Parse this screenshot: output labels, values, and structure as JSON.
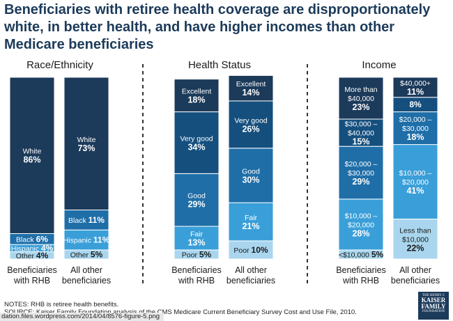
{
  "title_lines": [
    "Beneficiaries with retiree health coverage are disproportionately",
    "white, in better health, and have higher incomes than other",
    "Medicare beneficiaries"
  ],
  "notes": "NOTES: RHB is retiree health benefits.",
  "source": "SOURCE: Kaiser Family Foundation analysis of the CMS Medicare Current Beneficiary Survey Cost and Use File, 2010.",
  "url_bar": "dation.files.wordpress.com/2014/04/8576-figure-5.png",
  "logo": {
    "line1": "THE HENRY J.",
    "line2": "KAISER",
    "line3": "FAMILY",
    "line4": "FOUNDATION"
  },
  "chart_data": [
    {
      "type": "bar",
      "stacked": true,
      "title": "Race/Ethnicity",
      "categories": [
        [
          "Beneficiaries",
          "with RHB"
        ],
        [
          "All other",
          "beneficiaries"
        ]
      ],
      "series": [
        {
          "name": "Other",
          "values": [
            4,
            5
          ],
          "color": "#a9d6ee"
        },
        {
          "name": "Hispanic",
          "values": [
            4,
            11
          ],
          "color": "#3a9fd8"
        },
        {
          "name": "Black",
          "values": [
            6,
            11
          ],
          "color": "#1f6ea8"
        },
        {
          "name": "White",
          "values": [
            86,
            73
          ],
          "color": "#1c3a5a"
        }
      ],
      "labels": [
        [
          [
            "Other 4%"
          ],
          [
            "Hispanic 4%"
          ],
          [
            "Black 6%"
          ],
          [
            "White",
            "86%"
          ]
        ],
        [
          [
            "Other 5%"
          ],
          [
            "Hispanic 11%"
          ],
          [
            "Black 11%"
          ],
          [
            "White",
            "73%"
          ]
        ]
      ],
      "ylim": [
        0,
        100
      ]
    },
    {
      "type": "bar",
      "stacked": true,
      "title": "Health Status",
      "categories": [
        [
          "Beneficiaries",
          "with RHB"
        ],
        [
          "All other",
          "beneficiaries"
        ]
      ],
      "series": [
        {
          "name": "Poor",
          "values": [
            5,
            10
          ],
          "color": "#a9d6ee"
        },
        {
          "name": "Fair",
          "values": [
            13,
            21
          ],
          "color": "#3a9fd8"
        },
        {
          "name": "Good",
          "values": [
            29,
            30
          ],
          "color": "#1f6ea8"
        },
        {
          "name": "Very good",
          "values": [
            34,
            26
          ],
          "color": "#154f7e"
        },
        {
          "name": "Excellent",
          "values": [
            18,
            14
          ],
          "color": "#1c3a5a"
        }
      ],
      "labels": [
        [
          [
            "Poor 5%"
          ],
          [
            "Fair",
            "13%"
          ],
          [
            "Good",
            "29%"
          ],
          [
            "Very good",
            "34%"
          ],
          [
            "Excellent",
            "18%"
          ]
        ],
        [
          [
            "Poor 10%"
          ],
          [
            "Fair",
            "21%"
          ],
          [
            "Good",
            "30%"
          ],
          [
            "Very good",
            "26%"
          ],
          [
            "Excellent",
            "14%"
          ]
        ]
      ],
      "ylim": [
        0,
        100
      ]
    },
    {
      "type": "bar",
      "stacked": true,
      "title": "Income",
      "categories": [
        [
          "Beneficiaries",
          "with RHB"
        ],
        [
          "All other",
          "beneficiaries"
        ]
      ],
      "series": [
        {
          "name": "<$10,000 / Less than $10,000",
          "values": [
            5,
            22
          ],
          "color": "#a9d6ee"
        },
        {
          "name": "$10,000 – $20,000",
          "values": [
            28,
            41
          ],
          "color": "#3a9fd8"
        },
        {
          "name": "$20,000 – $30,000",
          "values": [
            29,
            18
          ],
          "color": "#1f6ea8"
        },
        {
          "name": "$30,000 – $40,000",
          "values": [
            15,
            8
          ],
          "color": "#154f7e"
        },
        {
          "name": "More than $40,000 / $40,000+",
          "values": [
            23,
            11
          ],
          "color": "#1c3a5a"
        }
      ],
      "labels": [
        [
          [
            "<$10,000 5%"
          ],
          [
            "$10,000 –",
            "$20,000",
            "28%"
          ],
          [
            "$20,000 –",
            "$30,000",
            "29%"
          ],
          [
            "$30,000 –",
            "$40,000",
            "15%"
          ],
          [
            "More than",
            "$40,000",
            "23%"
          ]
        ],
        [
          [
            "Less than",
            "$10,000",
            "22%"
          ],
          [
            "$10,000 –",
            "$20,000",
            "41%"
          ],
          [
            "$20,000 –",
            "$30,000",
            "18%"
          ],
          [
            "8%"
          ],
          [
            "$40,000+",
            "11%"
          ]
        ]
      ],
      "ylim": [
        0,
        100
      ]
    }
  ]
}
